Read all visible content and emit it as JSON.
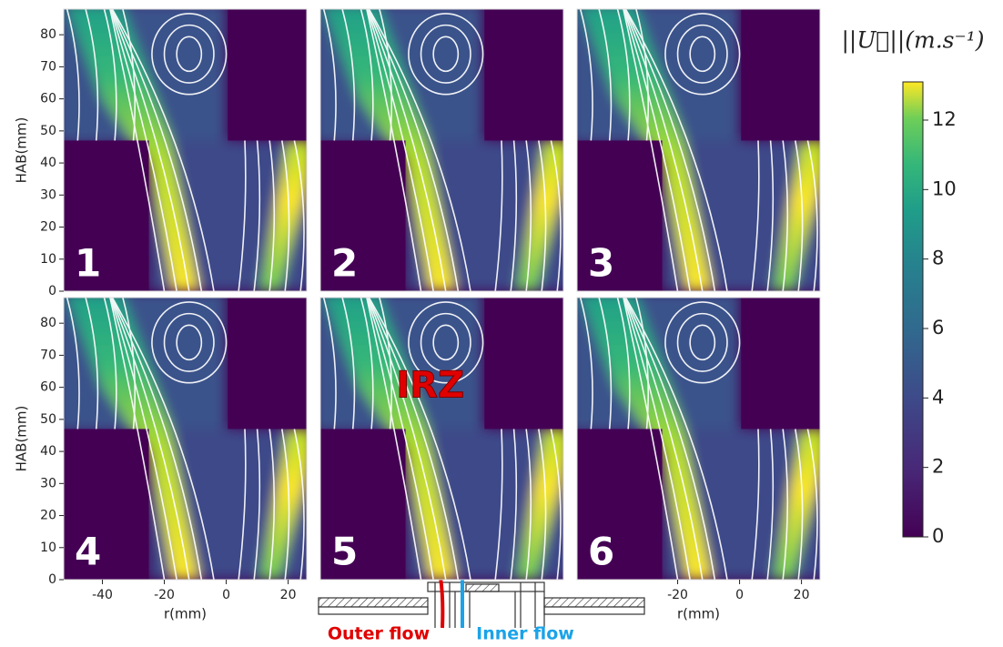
{
  "chart_data": [
    {
      "type": "streamline",
      "label": "1",
      "xlim": [
        -52.5,
        26
      ],
      "ylim": [
        0,
        88
      ],
      "yticks": [
        0,
        10,
        20,
        30,
        40,
        50,
        60,
        70,
        80
      ],
      "ylabel": "HAB(mm)"
    },
    {
      "type": "streamline",
      "label": "2",
      "xlim": [
        -52.5,
        26
      ],
      "ylim": [
        0,
        88
      ]
    },
    {
      "type": "streamline",
      "label": "3",
      "xlim": [
        -52.5,
        26
      ],
      "ylim": [
        0,
        88
      ]
    },
    {
      "type": "streamline",
      "label": "4",
      "xlim": [
        -52.5,
        26
      ],
      "ylim": [
        0,
        88
      ],
      "yticks": [
        0,
        10,
        20,
        30,
        40,
        50,
        60,
        70,
        80
      ],
      "ylabel": "HAB(mm)",
      "xticks": [
        -40,
        -20,
        0,
        20
      ],
      "xlabel": "r(mm)"
    },
    {
      "type": "streamline",
      "label": "5",
      "xlim": [
        -52.5,
        26
      ],
      "ylim": [
        0,
        88
      ],
      "annotation": "IRZ"
    },
    {
      "type": "streamline",
      "label": "6",
      "xlim": [
        -52.5,
        26
      ],
      "ylim": [
        0,
        88
      ],
      "xticks": [
        -20,
        0,
        20
      ],
      "xlabel": "r(mm)"
    }
  ],
  "colorbar": {
    "label": "||U⃗||(m.s⁻¹)",
    "lim": [
      0,
      13.1
    ],
    "ticks": [
      0,
      2,
      4,
      6,
      8,
      10,
      12
    ],
    "colormap": "viridis"
  },
  "annotations": {
    "outer_flow": "Outer flow",
    "inner_flow": "Inner flow"
  }
}
